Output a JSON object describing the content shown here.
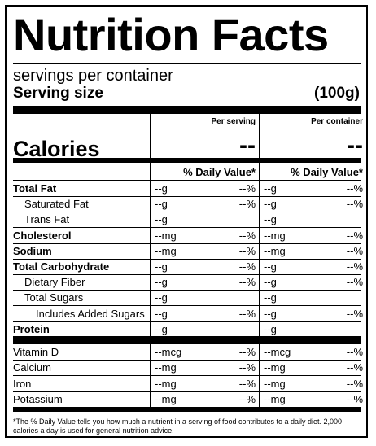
{
  "title": "Nutrition Facts",
  "servings_text": "servings per container",
  "serving_size": {
    "label": "Serving size",
    "value": "(100g)"
  },
  "columns": {
    "per_serving": "Per serving",
    "per_container": "Per container"
  },
  "calories": {
    "label": "Calories",
    "per_serving": "--",
    "per_container": "--"
  },
  "dv_header": "% Daily Value*",
  "nutrients": [
    {
      "name": "Total Fat",
      "bold": true,
      "indent": 0,
      "amt1": "--g",
      "pct1": "--%",
      "amt2": "--g",
      "pct2": "--%"
    },
    {
      "name": "Saturated Fat",
      "bold": false,
      "indent": 1,
      "amt1": "--g",
      "pct1": "--%",
      "amt2": "--g",
      "pct2": "--%"
    },
    {
      "name": "Trans Fat",
      "bold": false,
      "indent": 1,
      "amt1": "--g",
      "pct1": "",
      "amt2": "--g",
      "pct2": ""
    },
    {
      "name": "Cholesterol",
      "bold": true,
      "indent": 0,
      "amt1": "--mg",
      "pct1": "--%",
      "amt2": "--mg",
      "pct2": "--%"
    },
    {
      "name": "Sodium",
      "bold": true,
      "indent": 0,
      "amt1": "--mg",
      "pct1": "--%",
      "amt2": "--mg",
      "pct2": "--%"
    },
    {
      "name": "Total Carbohydrate",
      "bold": true,
      "indent": 0,
      "amt1": "--g",
      "pct1": "--%",
      "amt2": "--g",
      "pct2": "--%"
    },
    {
      "name": "Dietary Fiber",
      "bold": false,
      "indent": 1,
      "amt1": "--g",
      "pct1": "--%",
      "amt2": "--g",
      "pct2": "--%"
    },
    {
      "name": "Total Sugars",
      "bold": false,
      "indent": 1,
      "amt1": "--g",
      "pct1": "",
      "amt2": "--g",
      "pct2": ""
    },
    {
      "name": "Includes Added Sugars",
      "bold": false,
      "indent": 2,
      "amt1": "--g",
      "pct1": "--%",
      "amt2": "--g",
      "pct2": "--%"
    },
    {
      "name": "Protein",
      "bold": true,
      "indent": 0,
      "amt1": "--g",
      "pct1": "",
      "amt2": "--g",
      "pct2": ""
    }
  ],
  "vitamins": [
    {
      "name": "Vitamin D",
      "amt1": "--mcg",
      "pct1": "--%",
      "amt2": "--mcg",
      "pct2": "--%"
    },
    {
      "name": "Calcium",
      "amt1": "--mg",
      "pct1": "--%",
      "amt2": "--mg",
      "pct2": "--%"
    },
    {
      "name": "Iron",
      "amt1": "--mg",
      "pct1": "--%",
      "amt2": "--mg",
      "pct2": "--%"
    },
    {
      "name": "Potassium",
      "amt1": "--mg",
      "pct1": "--%",
      "amt2": "--mg",
      "pct2": "--%"
    }
  ],
  "footnote": "*The % Daily Value tells you how much a nutrient in a serving of food contributes to a daily diet. 2,000 calories a day is used for general nutrition advice."
}
